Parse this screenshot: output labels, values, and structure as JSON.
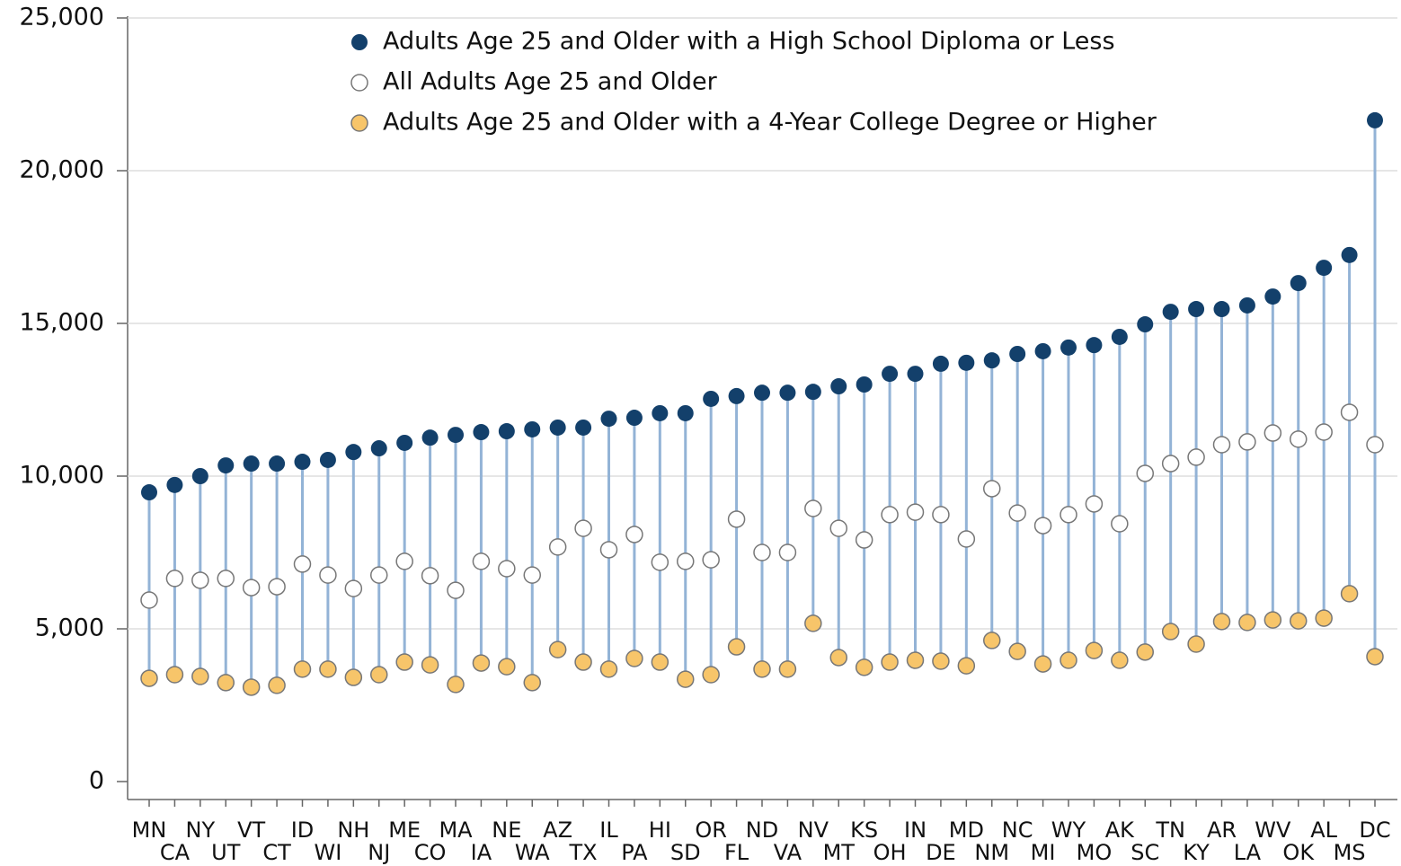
{
  "chart_data": {
    "type": "dot",
    "categories": [
      "MN",
      "CA",
      "NY",
      "UT",
      "VT",
      "CT",
      "ID",
      "WI",
      "NH",
      "NJ",
      "ME",
      "CO",
      "MA",
      "IA",
      "NE",
      "WA",
      "AZ",
      "TX",
      "IL",
      "PA",
      "HI",
      "SD",
      "OR",
      "FL",
      "ND",
      "VA",
      "NV",
      "MT",
      "KS",
      "OH",
      "IN",
      "DE",
      "MD",
      "NM",
      "NC",
      "MI",
      "WY",
      "MO",
      "AK",
      "SC",
      "TN",
      "KY",
      "AR",
      "LA",
      "WV",
      "OK",
      "AL",
      "MS",
      "DC"
    ],
    "series": [
      {
        "name": "Adults Age 25 and Older with a High School Diploma or Less",
        "color": "#13406b",
        "values": [
          9470,
          9710,
          10000,
          10350,
          10410,
          10410,
          10470,
          10530,
          10790,
          10910,
          11090,
          11260,
          11350,
          11440,
          11470,
          11530,
          11590,
          11590,
          11880,
          11910,
          12060,
          12060,
          12530,
          12620,
          12730,
          12730,
          12760,
          12940,
          13000,
          13350,
          13350,
          13680,
          13710,
          13790,
          14000,
          14090,
          14210,
          14290,
          14560,
          14970,
          15380,
          15470,
          15470,
          15590,
          15880,
          16320,
          16820,
          17240,
          21650
        ]
      },
      {
        "name": "All Adults Age 25 and Older",
        "color": "#ffffff",
        "values": [
          5940,
          6650,
          6590,
          6650,
          6350,
          6380,
          7120,
          6760,
          6320,
          6760,
          7210,
          6740,
          6260,
          7210,
          6970,
          6760,
          7680,
          8290,
          7590,
          8090,
          7180,
          7210,
          7260,
          8590,
          7500,
          7500,
          8940,
          8290,
          7910,
          8740,
          8820,
          8740,
          7940,
          9590,
          8790,
          8380,
          8740,
          9090,
          8440,
          10090,
          10410,
          10620,
          11030,
          11120,
          11410,
          11210,
          11440,
          12090,
          11030
        ]
      },
      {
        "name": "Adults Age 25 and Older with a 4-Year College Degree or Higher",
        "color": "#f7c56a",
        "values": [
          3380,
          3500,
          3440,
          3240,
          3090,
          3150,
          3680,
          3680,
          3410,
          3500,
          3910,
          3820,
          3180,
          3880,
          3760,
          3240,
          4320,
          3910,
          3680,
          4030,
          3910,
          3350,
          3500,
          4410,
          3680,
          3680,
          5180,
          4060,
          3740,
          3910,
          3970,
          3940,
          3790,
          4620,
          4260,
          3850,
          3970,
          4290,
          3970,
          4240,
          4910,
          4500,
          5240,
          5210,
          5290,
          5260,
          5350,
          6150,
          4090
        ]
      }
    ],
    "stem_color": "#93b3d6",
    "ylim": [
      0,
      25000
    ],
    "yticks": [
      0,
      {
        "value": 5000,
        "label": "5,000"
      },
      {
        "value": 10000,
        "label": "10,000"
      },
      {
        "value": 15000,
        "label": "15,000"
      },
      {
        "value": 20000,
        "label": "20,000"
      },
      {
        "value": 25000,
        "label": "25,000"
      }
    ],
    "grid": true
  }
}
